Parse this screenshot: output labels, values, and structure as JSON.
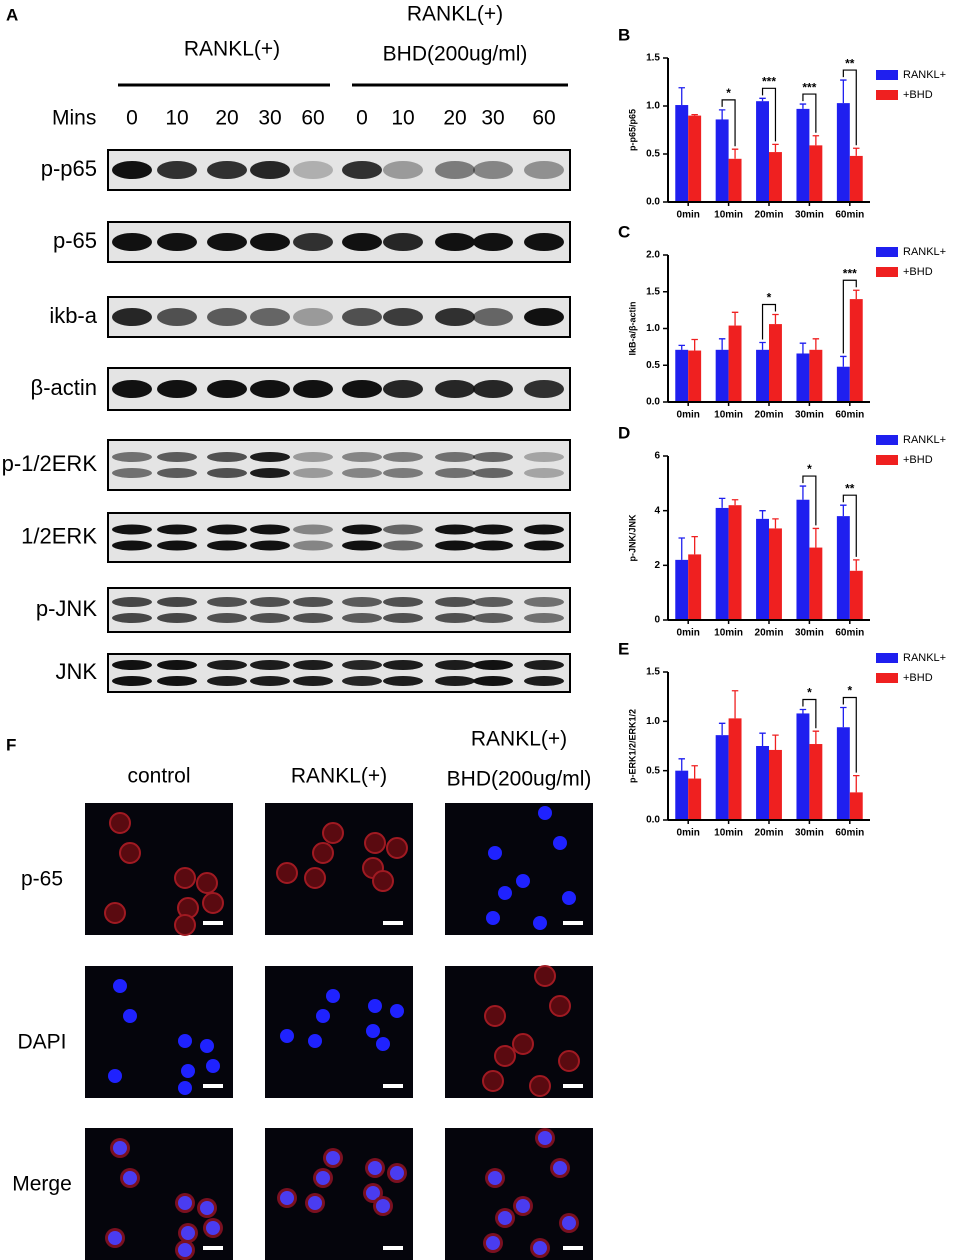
{
  "panel_a": {
    "label": "A",
    "groups": [
      {
        "label_lines": [
          "RANKL(+)"
        ]
      },
      {
        "label_lines": [
          "RANKL(+)",
          "BHD(200ug/ml)"
        ]
      }
    ],
    "mins_label": "Mins",
    "times": [
      "0",
      "10",
      "20",
      "30",
      "60",
      "0",
      "10",
      "20",
      "30",
      "60"
    ],
    "bands": [
      "p-p65",
      "p-65",
      "ikb-a",
      "β-actin",
      "p-1/2ERK",
      "1/2ERK",
      "p-JNK",
      "JNK"
    ]
  },
  "chart_data": [
    {
      "type": "bar",
      "panel": "B",
      "y_label": "p-p65/p65",
      "categories": [
        "0min",
        "10min",
        "20min",
        "30min",
        "60min"
      ],
      "series": [
        {
          "name": "RANKL+",
          "color": "#1f1fef",
          "values": [
            1.01,
            0.86,
            1.05,
            0.97,
            1.03
          ],
          "errors": [
            0.18,
            0.1,
            0.03,
            0.05,
            0.24
          ]
        },
        {
          "name": "+BHD",
          "color": "#ef2020",
          "values": [
            0.9,
            0.45,
            0.52,
            0.59,
            0.48
          ],
          "errors": [
            0.01,
            0.1,
            0.08,
            0.1,
            0.08
          ]
        }
      ],
      "significance": [
        null,
        "*",
        "***",
        "***",
        "**"
      ],
      "ylim": [
        0,
        1.5
      ],
      "yticks": [
        {
          "value": 0,
          "label": "0.0"
        },
        0.5,
        {
          "value": 1,
          "label": "1.0"
        },
        1.5
      ]
    },
    {
      "type": "bar",
      "panel": "C",
      "y_label": "IkB-a/β-actin",
      "categories": [
        "0min",
        "10min",
        "20min",
        "30min",
        "60min"
      ],
      "series": [
        {
          "name": "RANKL+",
          "color": "#1f1fef",
          "values": [
            0.71,
            0.71,
            0.71,
            0.66,
            0.48
          ],
          "errors": [
            0.06,
            0.15,
            0.1,
            0.14,
            0.14
          ]
        },
        {
          "name": "+BHD",
          "color": "#ef2020",
          "values": [
            0.7,
            1.04,
            1.06,
            0.71,
            1.4
          ],
          "errors": [
            0.15,
            0.18,
            0.13,
            0.15,
            0.12
          ]
        }
      ],
      "significance": [
        null,
        null,
        "*",
        null,
        "***"
      ],
      "ylim": [
        0,
        2
      ],
      "yticks": [
        {
          "value": 0,
          "label": "0.0"
        },
        0.5,
        {
          "value": 1,
          "label": "1.0"
        },
        1.5,
        {
          "value": 2,
          "label": "2.0"
        }
      ]
    },
    {
      "type": "bar",
      "panel": "D",
      "y_label": "p-JNK/JNK",
      "categories": [
        "0min",
        "10min",
        "20min",
        "30min",
        "60min"
      ],
      "series": [
        {
          "name": "RANKL+",
          "color": "#1f1fef",
          "values": [
            2.2,
            4.1,
            3.7,
            4.4,
            3.8
          ],
          "errors": [
            0.8,
            0.35,
            0.3,
            0.5,
            0.4
          ]
        },
        {
          "name": "+BHD",
          "color": "#ef2020",
          "values": [
            2.4,
            4.2,
            3.35,
            2.65,
            1.8
          ],
          "errors": [
            0.65,
            0.2,
            0.35,
            0.7,
            0.4
          ]
        }
      ],
      "significance": [
        null,
        null,
        null,
        "*",
        "**"
      ],
      "ylim": [
        0,
        6
      ],
      "yticks": [
        0,
        2,
        4,
        6
      ]
    },
    {
      "type": "bar",
      "panel": "E",
      "y_label": "p-ERK1/2/ERK1/2",
      "categories": [
        "0min",
        "10min",
        "20min",
        "30min",
        "60min"
      ],
      "series": [
        {
          "name": "RANKL+",
          "color": "#1f1fef",
          "values": [
            0.5,
            0.86,
            0.75,
            1.08,
            0.94
          ],
          "errors": [
            0.12,
            0.12,
            0.13,
            0.04,
            0.2
          ]
        },
        {
          "name": "+BHD",
          "color": "#ef2020",
          "values": [
            0.42,
            1.03,
            0.71,
            0.77,
            0.28
          ],
          "errors": [
            0.13,
            0.28,
            0.15,
            0.13,
            0.17
          ]
        }
      ],
      "significance": [
        null,
        null,
        null,
        "*",
        "*"
      ],
      "ylim": [
        0,
        1.5
      ],
      "yticks": [
        {
          "value": 0,
          "label": "0.0"
        },
        0.5,
        {
          "value": 1,
          "label": "1.0"
        },
        1.5
      ]
    }
  ],
  "panel_f": {
    "label": "F",
    "columns": [
      {
        "label_lines": [
          "control"
        ]
      },
      {
        "label_lines": [
          "RANKL(+)"
        ]
      },
      {
        "label_lines": [
          "RANKL(+)",
          "BHD(200ug/ml)"
        ]
      }
    ],
    "rows": [
      "p-65",
      "DAPI",
      "Merge"
    ]
  }
}
